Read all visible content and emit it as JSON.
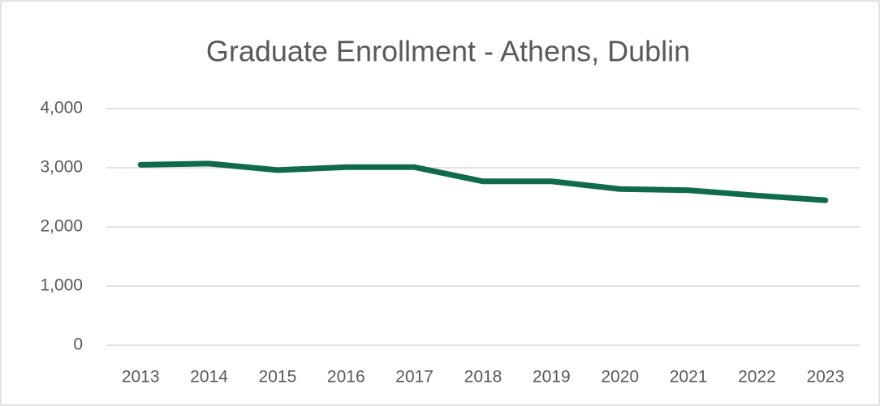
{
  "chart_data": {
    "type": "line",
    "title": "Graduate Enrollment - Athens, Dublin",
    "categories": [
      "2013",
      "2014",
      "2015",
      "2016",
      "2017",
      "2018",
      "2019",
      "2020",
      "2021",
      "2022",
      "2023"
    ],
    "series": [
      {
        "name": "Graduate Enrollment",
        "color": "#0f6b4c",
        "values": [
          3050,
          3070,
          2960,
          3010,
          3010,
          2770,
          2770,
          2640,
          2620,
          2530,
          2450
        ]
      }
    ],
    "ylim": [
      0,
      4000
    ],
    "yticks": [
      0,
      {
        "value": 1000,
        "label": "1,000"
      },
      {
        "value": 2000,
        "label": "2,000"
      },
      {
        "value": 3000,
        "label": "3,000"
      },
      {
        "value": 4000,
        "label": "4,000"
      }
    ],
    "grid": true
  }
}
